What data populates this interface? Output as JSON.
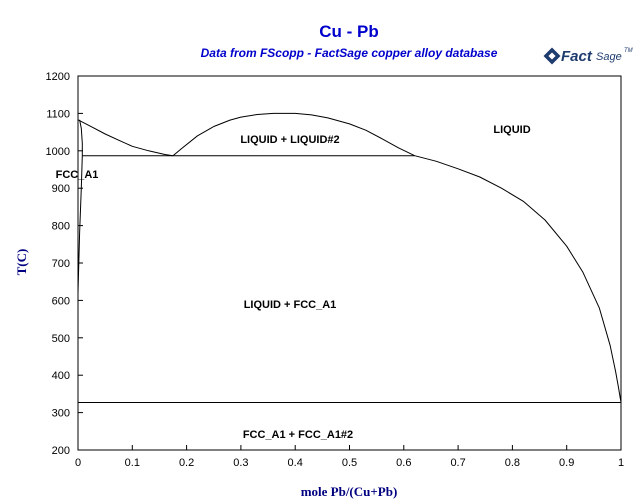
{
  "chart_data": {
    "type": "line",
    "title": "Cu - Pb",
    "subtitle": "Data from FScopp - FactSage copper alloy database",
    "xlabel": "mole Pb/(Cu+Pb)",
    "ylabel": "T(C)",
    "xlim": [
      0,
      1
    ],
    "ylim": [
      200,
      1200
    ],
    "x_ticks": [
      "0",
      "0.1",
      "0.2",
      "0.3",
      "0.4",
      "0.5",
      "0.6",
      "0.7",
      "0.8",
      "0.9",
      "1"
    ],
    "y_ticks": [
      "200",
      "300",
      "400",
      "500",
      "600",
      "700",
      "800",
      "900",
      "1000",
      "1100",
      "1200"
    ],
    "grid": false,
    "legend": "none",
    "line_color": "#000000",
    "series": [
      {
        "x": [
          0,
          0.02,
          0.05,
          0.08,
          0.1,
          0.13,
          0.16,
          0.175
        ],
        "y": [
          1083,
          1068,
          1045,
          1025,
          1012,
          1000,
          990,
          987
        ]
      },
      {
        "x": [
          0.175,
          0.19,
          0.22,
          0.25,
          0.28,
          0.3,
          0.33,
          0.36,
          0.4,
          0.43,
          0.46,
          0.5,
          0.53,
          0.56,
          0.59,
          0.62
        ],
        "y": [
          987,
          1005,
          1040,
          1065,
          1082,
          1090,
          1097,
          1100,
          1100,
          1096,
          1088,
          1072,
          1055,
          1032,
          1008,
          987
        ]
      },
      {
        "x": [
          0.62,
          0.66,
          0.7,
          0.74,
          0.78,
          0.82,
          0.86,
          0.9,
          0.93,
          0.96,
          0.98,
          0.99,
          0.995,
          1.0
        ],
        "y": [
          987,
          972,
          952,
          930,
          900,
          865,
          815,
          745,
          675,
          580,
          480,
          410,
          370,
          327
        ]
      },
      {
        "x": [
          0.003,
          0.006,
          0.008,
          0.008,
          0.006,
          0.003,
          0.0
        ],
        "y": [
          1083,
          1060,
          1020,
          987,
          900,
          780,
          620
        ]
      },
      {
        "x": [
          0.008,
          0.62
        ],
        "y": [
          987,
          987
        ]
      },
      {
        "x": [
          0.0,
          1.0
        ],
        "y": [
          327,
          327
        ]
      }
    ]
  },
  "labels": {
    "liquid": "LIQUID",
    "liquid_liquid2": "LIQUID + LIQUID#2",
    "fcc_a1": "FCC_A1",
    "liquid_fcc": "LIQUID + FCC_A1",
    "fcc_fcc2": "FCC_A1 + FCC_A1#2"
  },
  "logo": {
    "text": "Fact",
    "sup": "Sage",
    "tm": "TM"
  }
}
